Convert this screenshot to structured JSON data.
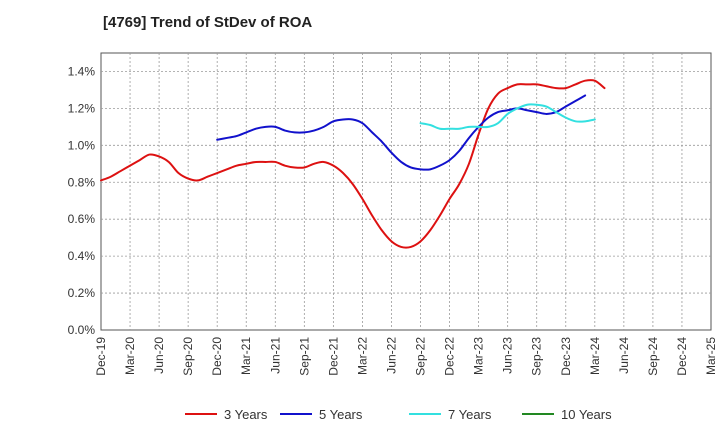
{
  "chart_data": {
    "type": "line",
    "title": "[4769]  Trend of StDev of ROA",
    "xlabel": "",
    "ylabel": "",
    "x_ticks": [
      "Dec-19",
      "Mar-20",
      "Jun-20",
      "Sep-20",
      "Dec-20",
      "Mar-21",
      "Jun-21",
      "Sep-21",
      "Dec-21",
      "Mar-22",
      "Jun-22",
      "Sep-22",
      "Dec-22",
      "Mar-23",
      "Jun-23",
      "Sep-23",
      "Dec-23",
      "Mar-24",
      "Jun-24",
      "Sep-24",
      "Dec-24",
      "Mar-25"
    ],
    "y_ticks": [
      "0.0%",
      "0.2%",
      "0.4%",
      "0.6%",
      "0.8%",
      "1.0%",
      "1.2%",
      "1.4%"
    ],
    "ylim": [
      0,
      1.5
    ],
    "y_unit": "%",
    "grid": true,
    "legend_position": "bottom",
    "series": [
      {
        "name": "3 Years",
        "color": "#dd1111",
        "values": [
          0.81,
          0.83,
          0.86,
          0.89,
          0.92,
          0.95,
          0.94,
          0.91,
          0.85,
          0.82,
          0.81,
          0.83,
          0.85,
          0.87,
          0.89,
          0.9,
          0.91,
          0.91,
          0.91,
          0.89,
          0.88,
          0.88,
          0.9,
          0.91,
          0.89,
          0.85,
          0.79,
          0.71,
          0.62,
          0.54,
          0.48,
          0.45,
          0.45,
          0.48,
          0.54,
          0.62,
          0.71,
          0.79,
          0.9,
          1.06,
          1.2,
          1.28,
          1.31,
          1.33,
          1.33,
          1.33,
          1.32,
          1.31,
          1.31,
          1.33,
          1.35,
          1.35,
          1.31
        ]
      },
      {
        "name": "5 Years",
        "color": "#1111cc",
        "values": [
          null,
          null,
          null,
          null,
          null,
          null,
          null,
          null,
          null,
          null,
          null,
          null,
          1.03,
          1.04,
          1.05,
          1.07,
          1.09,
          1.1,
          1.1,
          1.08,
          1.07,
          1.07,
          1.08,
          1.1,
          1.13,
          1.14,
          1.14,
          1.12,
          1.07,
          1.02,
          0.96,
          0.91,
          0.88,
          0.87,
          0.87,
          0.89,
          0.92,
          0.97,
          1.04,
          1.1,
          1.15,
          1.18,
          1.19,
          1.2,
          1.19,
          1.18,
          1.17,
          1.18,
          1.21,
          1.24,
          1.27
        ]
      },
      {
        "name": "7 Years",
        "color": "#33e0e0",
        "values": [
          null,
          null,
          null,
          null,
          null,
          null,
          null,
          null,
          null,
          null,
          null,
          null,
          null,
          null,
          null,
          null,
          null,
          null,
          null,
          null,
          null,
          null,
          null,
          null,
          null,
          null,
          null,
          null,
          null,
          null,
          null,
          null,
          null,
          1.12,
          1.11,
          1.09,
          1.09,
          1.09,
          1.1,
          1.1,
          1.1,
          1.12,
          1.17,
          1.2,
          1.22,
          1.22,
          1.21,
          1.18,
          1.15,
          1.13,
          1.13,
          1.14
        ]
      },
      {
        "name": "10 Years",
        "color": "#228822",
        "values": []
      }
    ]
  }
}
